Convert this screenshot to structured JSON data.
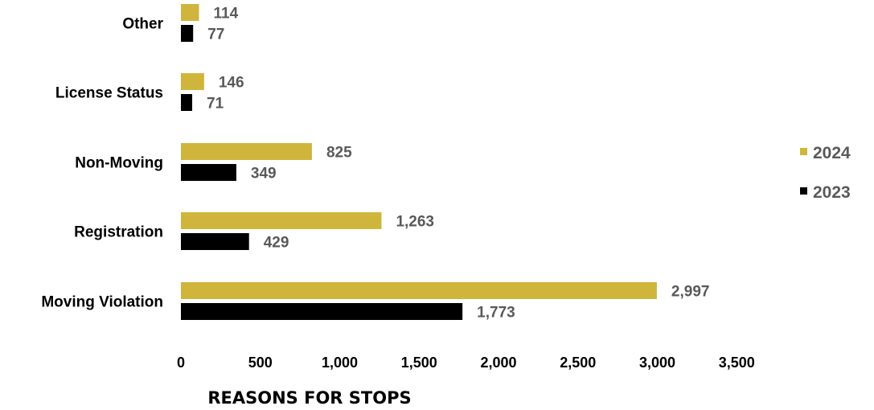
{
  "chart_data": {
    "type": "bar",
    "orientation": "horizontal",
    "title": "REASONS FOR STOPS",
    "categories": [
      "Moving Violation",
      "Registration",
      "Non-Moving",
      "License Status",
      "Other"
    ],
    "series": [
      {
        "name": "2024",
        "color": "#CFB53B",
        "values": [
          2997,
          1263,
          825,
          146,
          114
        ],
        "labels": [
          "2,997",
          "1,263",
          "825",
          "146",
          "114"
        ]
      },
      {
        "name": "2023",
        "color": "#000000",
        "values": [
          1773,
          429,
          349,
          71,
          77
        ],
        "labels": [
          "1,773",
          "429",
          "349",
          "71",
          "77"
        ]
      }
    ],
    "xlim": [
      0,
      3500
    ],
    "xticks": [
      0,
      500,
      1000,
      1500,
      2000,
      2500,
      3000,
      3500
    ],
    "xtick_labels": [
      "0",
      "500",
      "1,000",
      "1,500",
      "2,000",
      "2,500",
      "3,000",
      "3,500"
    ],
    "grid": false,
    "legend_position": "right"
  }
}
